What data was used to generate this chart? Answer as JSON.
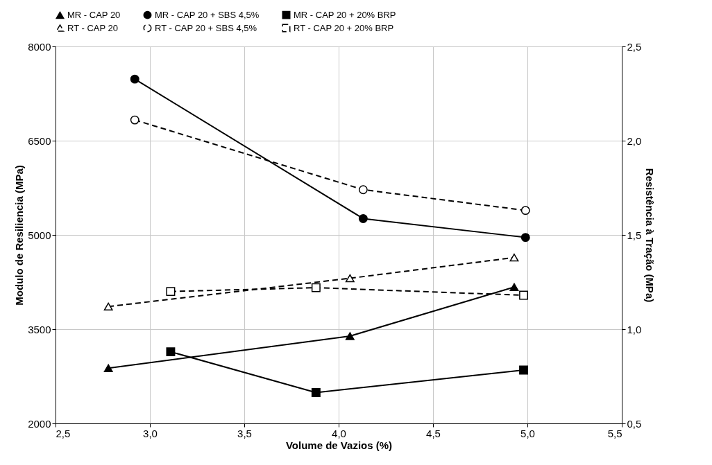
{
  "chart_data": {
    "type": "line",
    "xlabel": "Volume de Vazios (%)",
    "ylabel": "Modulo de Resiliencia (MPa)",
    "y2label": "Resistência à Tração (MPa)",
    "xlim": [
      2.5,
      5.5
    ],
    "xticks": [
      {
        "value": 2.5,
        "label": "2,5"
      },
      {
        "value": 3,
        "label": "3,0"
      },
      {
        "value": 3.5,
        "label": "3,5"
      },
      {
        "value": 4,
        "label": "4,0"
      },
      {
        "value": 4.5,
        "label": "4,5"
      },
      {
        "value": 5,
        "label": "5,0"
      },
      {
        "value": 5.5,
        "label": "5,5"
      }
    ],
    "ylim": [
      2000,
      8000
    ],
    "yticks": [
      2000,
      3500,
      5000,
      6500,
      8000
    ],
    "y2lim": [
      0.5,
      2.5
    ],
    "y2ticks": [
      {
        "value": 0.5,
        "label": "0,5"
      },
      {
        "value": 1,
        "label": "1,0"
      },
      {
        "value": 1.5,
        "label": "1,5"
      },
      {
        "value": 2,
        "label": "2,0"
      },
      {
        "value": 2.5,
        "label": "2,5"
      }
    ],
    "grid": true,
    "legend": "top",
    "series": [
      {
        "name": "MR - CAP 20",
        "color": "#000000",
        "marker": "triangle",
        "line_style": "solid",
        "x": [
          2.78,
          4.06,
          4.93
        ],
        "values": [
          2880,
          3390,
          4170
        ]
      },
      {
        "name": "MR - CAP 20 + SBS 4,5%",
        "color": "#000000",
        "marker": "circle",
        "line_style": "solid",
        "x": [
          2.92,
          4.13,
          4.99
        ],
        "values": [
          7480,
          5260,
          4960
        ]
      },
      {
        "name": "MR - CAP 20 + 20% BRP",
        "color": "#000000",
        "marker": "square",
        "line_style": "solid",
        "x": [
          3.11,
          3.88,
          4.98
        ],
        "values": [
          3140,
          2490,
          2850
        ]
      },
      {
        "name": "RT - CAP 20",
        "color": "#000000",
        "marker": "triangle",
        "line_style": "dashed",
        "axis": "y2",
        "x": [
          2.78,
          4.06,
          4.93
        ],
        "values": [
          1.12,
          1.27,
          1.38
        ]
      },
      {
        "name": "RT - CAP 20 + SBS 4,5%",
        "color": "#000000",
        "marker": "circle",
        "line_style": "dashed",
        "axis": "y2",
        "x": [
          2.92,
          4.13,
          4.99
        ],
        "values": [
          2.11,
          1.74,
          1.63
        ]
      },
      {
        "name": "RT - CAP 20 + 20% BRP",
        "color": "#000000",
        "marker": "square",
        "line_style": "dashed",
        "axis": "y2",
        "x": [
          3.11,
          3.88,
          4.98
        ],
        "values": [
          1.2,
          1.22,
          1.18
        ]
      }
    ]
  }
}
